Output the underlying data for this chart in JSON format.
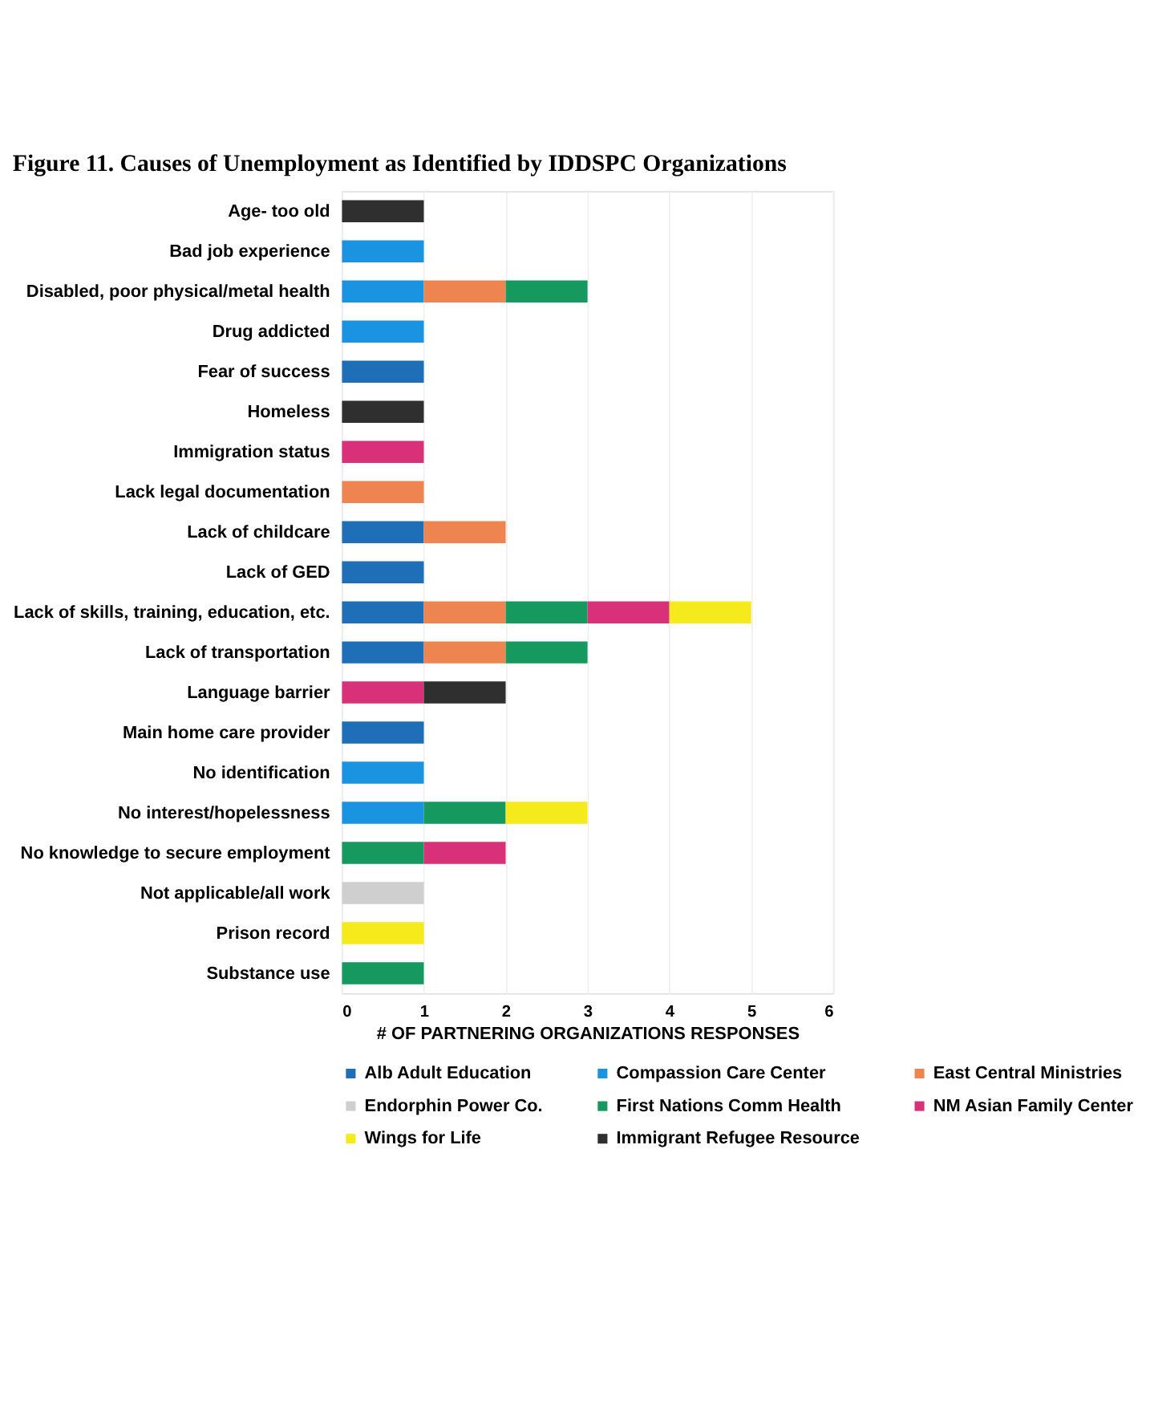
{
  "chart_data": {
    "type": "bar",
    "orientation": "horizontal",
    "stacked": true,
    "title": "Figure 11. Causes of Unemployment as Identified by IDDSPC Organizations",
    "xlabel": "# OF PARTNERING ORGANIZATIONS RESPONSES",
    "categories": [
      "Age- too old",
      "Bad job experience",
      "Disabled, poor physical/metal health",
      "Drug addicted",
      "Fear of success",
      "Homeless",
      "Immigration status",
      "Lack legal documentation",
      "Lack of childcare",
      "Lack of GED",
      "Lack of skills, training, education, etc.",
      "Lack of transportation",
      "Language barrier",
      "Main home care provider",
      "No identification",
      "No interest/hopelessness",
      "No knowledge to secure employment",
      "Not applicable/all work",
      "Prison record",
      "Substance use"
    ],
    "series": [
      {
        "name": "Alb Adult Education",
        "color": "#1f6fb8",
        "values": [
          null,
          null,
          null,
          null,
          1,
          null,
          null,
          null,
          1,
          1,
          1,
          1,
          null,
          1,
          null,
          null,
          null,
          null,
          null,
          null
        ]
      },
      {
        "name": "Compassion Care Center",
        "color": "#1a93e0",
        "values": [
          null,
          1,
          1,
          1,
          null,
          null,
          null,
          null,
          null,
          null,
          null,
          null,
          null,
          null,
          1,
          1,
          null,
          null,
          null,
          null
        ]
      },
      {
        "name": "East Central Ministries",
        "color": "#ee8550",
        "values": [
          null,
          null,
          1,
          null,
          null,
          null,
          null,
          1,
          1,
          null,
          1,
          1,
          null,
          null,
          null,
          null,
          null,
          null,
          null,
          null
        ]
      },
      {
        "name": "Endorphin Power Co.",
        "color": "#cfcfcf",
        "values": [
          null,
          null,
          null,
          null,
          null,
          null,
          null,
          null,
          null,
          null,
          null,
          null,
          null,
          null,
          null,
          null,
          null,
          1,
          null,
          null
        ]
      },
      {
        "name": "First Nations Comm Health",
        "color": "#15995e",
        "values": [
          null,
          null,
          1,
          null,
          null,
          null,
          null,
          null,
          null,
          null,
          1,
          1,
          null,
          null,
          null,
          1,
          1,
          null,
          null,
          1
        ]
      },
      {
        "name": "NM Asian Family Center",
        "color": "#d9307a",
        "values": [
          null,
          null,
          null,
          null,
          null,
          null,
          1,
          null,
          null,
          null,
          1,
          null,
          1,
          null,
          null,
          null,
          1,
          null,
          null,
          null
        ]
      },
      {
        "name": "Wings for Life",
        "color": "#f5ea1c",
        "values": [
          null,
          null,
          null,
          null,
          null,
          null,
          null,
          null,
          null,
          null,
          1,
          null,
          null,
          null,
          null,
          1,
          null,
          null,
          1,
          null
        ]
      },
      {
        "name": "Immigrant Refugee Resource",
        "color": "#2f2f2f",
        "values": [
          1,
          null,
          null,
          null,
          null,
          1,
          null,
          null,
          null,
          null,
          null,
          null,
          1,
          null,
          null,
          null,
          null,
          null,
          null,
          null
        ]
      }
    ],
    "xlim": [
      0,
      6
    ],
    "xticks": [
      0,
      1,
      2,
      3,
      4,
      5,
      6
    ],
    "grid": "x",
    "legend": "bottom"
  }
}
